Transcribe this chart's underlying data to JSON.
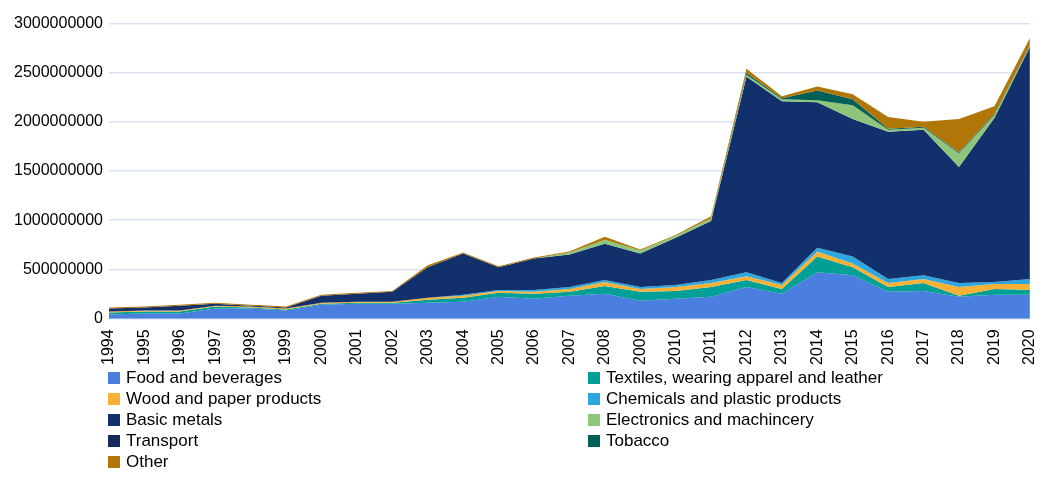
{
  "chart_data": {
    "type": "area",
    "stacked": true,
    "categories": [
      "1994",
      "1995",
      "1996",
      "1997",
      "1998",
      "1999",
      "2000",
      "2001",
      "2002",
      "2003",
      "2004",
      "2005",
      "2006",
      "2007",
      "2008",
      "2009",
      "2010",
      "2011",
      "2012",
      "2013",
      "2014",
      "2015",
      "2016",
      "2017",
      "2018",
      "2019",
      "2020"
    ],
    "series": [
      {
        "name": "Food and beverages",
        "color": "#4a7fe0",
        "values": [
          40000000,
          50000000,
          50000000,
          100000000,
          100000000,
          80000000,
          140000000,
          150000000,
          150000000,
          160000000,
          170000000,
          220000000,
          200000000,
          230000000,
          250000000,
          180000000,
          200000000,
          220000000,
          320000000,
          250000000,
          470000000,
          440000000,
          270000000,
          280000000,
          220000000,
          240000000,
          240000000
        ]
      },
      {
        "name": "Textiles, wearing apparel and leather",
        "color": "#00a096",
        "values": [
          20000000,
          20000000,
          20000000,
          20000000,
          10000000,
          10000000,
          10000000,
          10000000,
          10000000,
          30000000,
          40000000,
          40000000,
          50000000,
          40000000,
          80000000,
          90000000,
          80000000,
          100000000,
          70000000,
          50000000,
          160000000,
          80000000,
          50000000,
          80000000,
          10000000,
          60000000,
          50000000
        ]
      },
      {
        "name": "Wood and paper products",
        "color": "#f7b136",
        "values": [
          10000000,
          10000000,
          10000000,
          10000000,
          10000000,
          10000000,
          10000000,
          10000000,
          10000000,
          20000000,
          20000000,
          20000000,
          20000000,
          30000000,
          40000000,
          30000000,
          40000000,
          40000000,
          40000000,
          40000000,
          50000000,
          40000000,
          40000000,
          40000000,
          90000000,
          50000000,
          60000000
        ]
      },
      {
        "name": "Chemicals and plastic products",
        "color": "#2da7e0",
        "values": [
          0,
          0,
          0,
          0,
          0,
          0,
          0,
          0,
          0,
          0,
          10000000,
          10000000,
          20000000,
          20000000,
          20000000,
          20000000,
          20000000,
          30000000,
          40000000,
          20000000,
          40000000,
          70000000,
          40000000,
          40000000,
          40000000,
          20000000,
          50000000
        ]
      },
      {
        "name": "Basic metals",
        "color": "#11306c",
        "values": [
          30000000,
          30000000,
          50000000,
          20000000,
          10000000,
          10000000,
          70000000,
          80000000,
          100000000,
          310000000,
          420000000,
          230000000,
          320000000,
          330000000,
          370000000,
          340000000,
          480000000,
          600000000,
          1990000000,
          1850000000,
          1480000000,
          1400000000,
          1500000000,
          1480000000,
          1180000000,
          1670000000,
          2360000000
        ]
      },
      {
        "name": "Electronics and machincery",
        "color": "#8dc57a",
        "values": [
          0,
          0,
          0,
          0,
          0,
          0,
          0,
          0,
          0,
          0,
          0,
          0,
          0,
          20000000,
          40000000,
          30000000,
          20000000,
          30000000,
          20000000,
          20000000,
          20000000,
          140000000,
          20000000,
          20000000,
          140000000,
          30000000,
          10000000
        ]
      },
      {
        "name": "Transport",
        "color": "#122a5c",
        "values": [
          null,
          null,
          null,
          null,
          null,
          null,
          null,
          null,
          null,
          null,
          null,
          null,
          null,
          null,
          null,
          null,
          null,
          null,
          null,
          null,
          null,
          null,
          null,
          null,
          null,
          null,
          null
        ]
      },
      {
        "name": "Tobacco",
        "color": "#005f57",
        "values": [
          null,
          null,
          null,
          null,
          null,
          null,
          null,
          null,
          null,
          null,
          null,
          null,
          null,
          null,
          null,
          null,
          null,
          0,
          20000000,
          10000000,
          100000000,
          60000000,
          10000000,
          10000000,
          10000000,
          10000000,
          10000000
        ]
      },
      {
        "name": "Other",
        "color": "#b07607",
        "values": [
          10000000,
          10000000,
          10000000,
          10000000,
          10000000,
          10000000,
          10000000,
          10000000,
          10000000,
          20000000,
          10000000,
          10000000,
          10000000,
          10000000,
          30000000,
          10000000,
          10000000,
          20000000,
          40000000,
          20000000,
          40000000,
          50000000,
          120000000,
          50000000,
          340000000,
          80000000,
          70000000
        ]
      }
    ],
    "ylim": [
      0,
      3000000000
    ],
    "yticks": [
      0,
      500000000,
      1000000000,
      1500000000,
      2000000000,
      2500000000,
      3000000000
    ],
    "grid": "y",
    "legend": "bottom"
  }
}
